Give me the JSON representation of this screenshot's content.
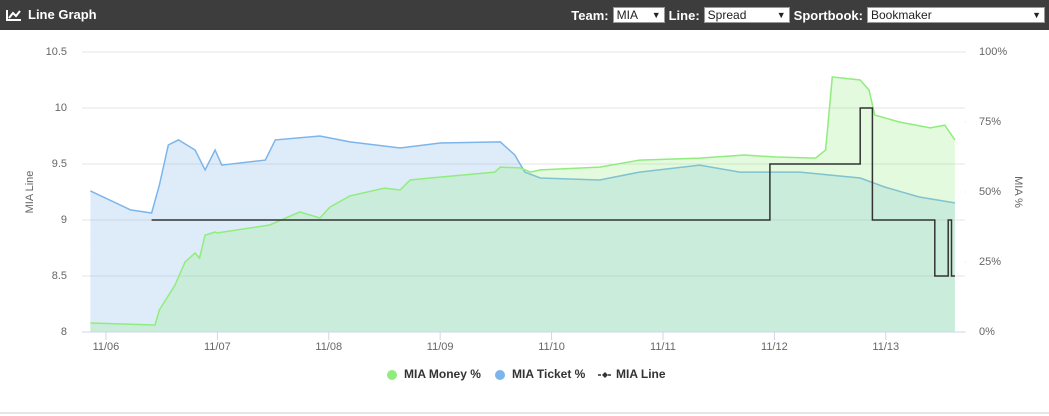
{
  "header": {
    "title": "Line Graph",
    "controls": [
      {
        "label": "Team:",
        "value": "MIA"
      },
      {
        "label": "Line:",
        "value": "Spread"
      },
      {
        "label": "Sportbook:",
        "value": "Bookmaker"
      }
    ]
  },
  "chart_data": {
    "type": "line",
    "y_label": "MIA Line",
    "y2_label": "MIA %",
    "xlim": [
      -0.215,
      7.711
    ],
    "xticks": [
      {
        "value": 0,
        "label": "11/06"
      },
      {
        "value": 1,
        "label": "11/07"
      },
      {
        "value": 2,
        "label": "11/08"
      },
      {
        "value": 3,
        "label": "11/09"
      },
      {
        "value": 4,
        "label": "11/10"
      },
      {
        "value": 5,
        "label": "11/11"
      },
      {
        "value": 6,
        "label": "11/12"
      },
      {
        "value": 7,
        "label": "11/13"
      }
    ],
    "ylim": [
      8,
      10.5
    ],
    "yticks": [
      8,
      8.5,
      9,
      9.5,
      10,
      10.5
    ],
    "y2lim": [
      0,
      100
    ],
    "y2ticks": [
      {
        "value": 0,
        "label": "0%"
      },
      {
        "value": 25,
        "label": "25%"
      },
      {
        "value": 50,
        "label": "50%"
      },
      {
        "value": 75,
        "label": "75%"
      },
      {
        "value": 100,
        "label": "100%"
      }
    ],
    "grid": true,
    "series": [
      {
        "name": "MIA Money %",
        "color": "#90ed7d",
        "axis": "y2",
        "area": true,
        "marker": "circle",
        "x": [
          -0.14,
          0.44,
          0.48,
          0.62,
          0.71,
          0.8,
          0.84,
          0.89,
          0.98,
          1.0,
          1.47,
          1.74,
          1.92,
          2.01,
          2.19,
          2.5,
          2.64,
          2.73,
          2.91,
          3.49,
          3.54,
          3.72,
          3.81,
          3.9,
          4.43,
          4.79,
          5.33,
          5.73,
          6.01,
          6.37,
          6.46,
          6.52,
          6.77,
          6.85,
          6.9,
          7.12,
          7.4,
          7.53,
          7.62
        ],
        "values": [
          3.2,
          2.5,
          7.9,
          16.8,
          25,
          28.2,
          26.4,
          34.6,
          35.7,
          35.4,
          38.2,
          42.9,
          40.7,
          44.6,
          48.6,
          51.4,
          50.7,
          54.3,
          55,
          57.1,
          58.9,
          58.6,
          57.1,
          57.9,
          58.9,
          61.4,
          62.1,
          63.2,
          62.5,
          62.1,
          65,
          91.1,
          90,
          86.4,
          77.5,
          75,
          72.9,
          73.9,
          68.6
        ]
      },
      {
        "name": "MIA Ticket %",
        "color": "#7cb5ec",
        "axis": "y2",
        "area": true,
        "marker": "circle",
        "x": [
          -0.14,
          0.22,
          0.41,
          0.48,
          0.56,
          0.65,
          0.8,
          0.89,
          0.98,
          1.04,
          1.43,
          1.52,
          1.92,
          2.19,
          2.64,
          3.0,
          3.54,
          3.67,
          3.76,
          3.9,
          4.43,
          4.79,
          5.33,
          5.69,
          6.23,
          6.77,
          6.99,
          7.3,
          7.62
        ],
        "values": [
          50.4,
          43.6,
          42.5,
          52.5,
          66.8,
          68.6,
          65,
          57.9,
          65,
          59.6,
          61.4,
          68.6,
          70,
          67.9,
          65.7,
          67.5,
          67.9,
          63.2,
          57.1,
          55,
          54.3,
          57.1,
          59.6,
          57.1,
          57.1,
          55,
          51.8,
          48.2,
          46.1
        ]
      },
      {
        "name": "MIA Line",
        "color": "#333333",
        "axis": "y",
        "area": false,
        "marker": "diamond",
        "x": [
          0.41,
          5.96,
          5.96,
          6.77,
          6.77,
          6.88,
          6.88,
          7.44,
          7.44,
          7.56,
          7.56,
          7.59,
          7.59,
          7.62
        ],
        "values": [
          9,
          9,
          9.5,
          9.5,
          10,
          10,
          9,
          9,
          8.5,
          8.5,
          9,
          9,
          8.5,
          8.5
        ]
      }
    ]
  }
}
